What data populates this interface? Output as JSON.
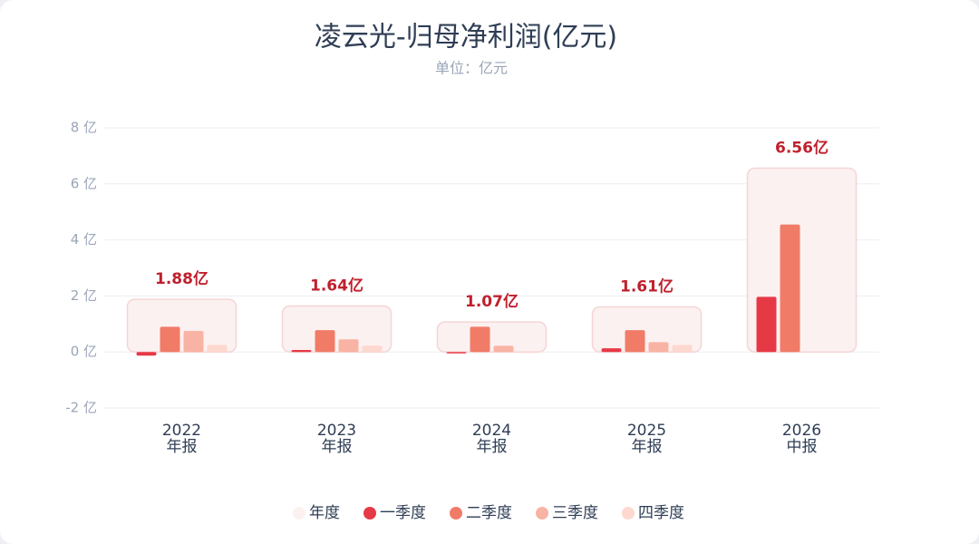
{
  "chart_data": {
    "type": "bar",
    "title": "凌云光-归母净利润(亿元)",
    "subtitle": "单位：亿元",
    "categories": [
      "2022",
      "2023",
      "2024",
      "2025",
      "2026"
    ],
    "category_sublabels": [
      "年报",
      "年报",
      "年报",
      "年报",
      "中报"
    ],
    "ylim": [
      -2,
      8
    ],
    "yticks": [
      {
        "value": -2,
        "label": "-2 亿"
      },
      {
        "value": 0,
        "label": "0 亿"
      },
      {
        "value": 2,
        "label": "2 亿"
      },
      {
        "value": 4,
        "label": "4 亿"
      },
      {
        "value": 6,
        "label": "6 亿"
      },
      {
        "value": 8,
        "label": "8 亿"
      }
    ],
    "grid": true,
    "series": [
      {
        "name": "年度",
        "color": "#fcf1f1",
        "values": [
          1.88,
          1.64,
          1.07,
          1.61,
          6.56
        ],
        "value_labels": [
          "1.88亿",
          "1.64亿",
          "1.07亿",
          "1.61亿",
          "6.56亿"
        ]
      },
      {
        "name": "一季度",
        "color": "#e63946",
        "values": [
          -0.13,
          0.07,
          -0.05,
          0.13,
          1.97
        ]
      },
      {
        "name": "二季度",
        "color": "#f07c68",
        "values": [
          0.9,
          0.78,
          0.9,
          0.78,
          4.55
        ]
      },
      {
        "name": "三季度",
        "color": "#f9b3a4",
        "values": [
          0.75,
          0.45,
          0.22,
          0.35,
          null
        ]
      },
      {
        "name": "四季度",
        "color": "#fdd8cf",
        "values": [
          0.25,
          0.23,
          -0.03,
          0.25,
          null
        ]
      }
    ]
  }
}
